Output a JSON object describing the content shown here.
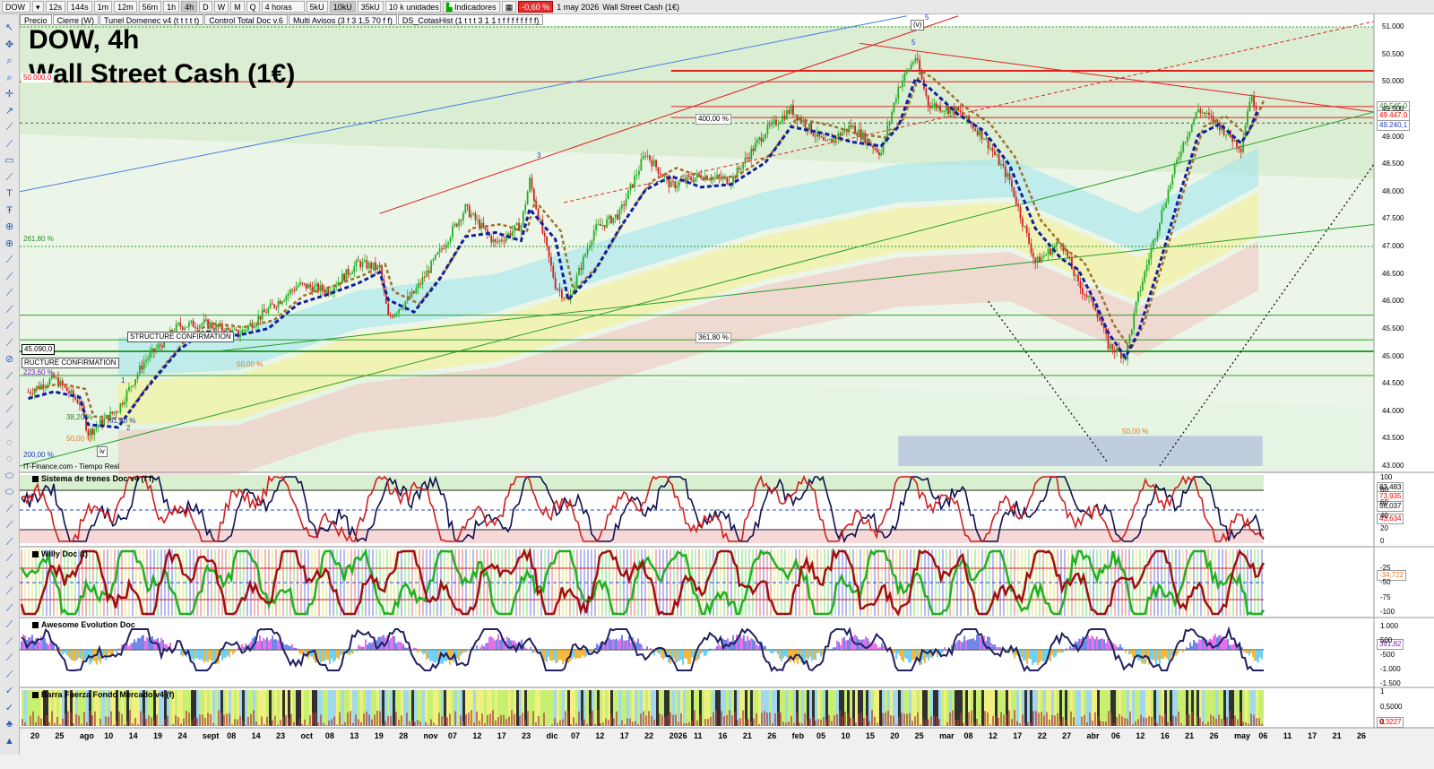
{
  "toolbar": {
    "symbol": "DOW",
    "timeframes": [
      "12s",
      "144s",
      "1m",
      "12m",
      "56m",
      "1h",
      "4h",
      "D",
      "W",
      "M",
      "Q"
    ],
    "active_timeframe": "4h",
    "period": "4 horas",
    "ticks": [
      "5kU",
      "10kU",
      "35kU"
    ],
    "active_tick": "10kU",
    "units": "10 k unidades",
    "indicators_label": "Indicadores",
    "change": "-0,60 %",
    "date": "1 may 2026",
    "instrument": "Wall Street Cash (1€)"
  },
  "indicator_tabs": [
    "Precio",
    "Cierre (W)",
    "Tunel Domenec v4 (t t t t t)",
    "Control Total Doc v.6",
    "Multi Avisos (3 f 3 1,5 70 f f)",
    "DS_CotasHist (1 t t t 3 1 1 t f f f f f f f f)"
  ],
  "title": {
    "line1": "DOW, 4h",
    "line2": "Wall Street Cash (1€)"
  },
  "source_note": "IT-Finance.com - Tiempo Real",
  "panels": {
    "trenes": {
      "title": "Sistema de trenes Doc v4 (f f)"
    },
    "willy": {
      "title": "Willy Doc (t)"
    },
    "awesome": {
      "title": "Awesome Evolution Doc"
    },
    "barra": {
      "title": "Barra Fuerza Fondo Mercado v4 (f)"
    }
  },
  "price_axis_labels": [
    "51.000",
    "50.500",
    "50.000",
    "49.500",
    "49.000",
    "48.500",
    "48.000",
    "47.500",
    "47.000",
    "46.500",
    "46.000",
    "45.500",
    "45.000",
    "44.500",
    "44.000",
    "43.500",
    "43.000"
  ],
  "price_tags": {
    "last": "49.545,0",
    "close": "49.447,0",
    "ref": "49.240,1"
  },
  "left_tags": {
    "level_50000": "50.000,0",
    "level_45090": "45.090,0",
    "pct_223": "223,60 %",
    "pct_200": "200,00 %",
    "pct_261": "261,80 %"
  },
  "annotations": {
    "pct_400": "400,00 %",
    "pct_361": "361,80 %",
    "pct_50a": "50,00 %",
    "pct_50b": "50,00 %",
    "pct_50c": "50,00 %",
    "pct_38": "38,20 %",
    "pct_61": "61,80 %",
    "structure1": "STRUCTURE CONFIRMATION",
    "structure2": "RUCTURE CONFIRMATION",
    "wave3": "3",
    "wave5": "5",
    "wave5b": "5",
    "wave_v": "(v)",
    "wave1": "1",
    "wave2": "2",
    "wave_iv": "iv"
  },
  "trenes_axis": [
    "100",
    "80",
    "60",
    "40",
    "20",
    "0"
  ],
  "trenes_tags": {
    "a": "83,483",
    "b": "73,935",
    "c": "56,037",
    "d": "43,634"
  },
  "willy_axis": [
    "-25",
    "-50",
    "-75",
    "-100"
  ],
  "willy_tag": "-34,722",
  "awesome_axis": [
    "1.000",
    "500",
    "-500",
    "-1.000",
    "-1.500"
  ],
  "awesome_tag": "391,82",
  "barra_axis": [
    "1",
    "0,5000",
    "0"
  ],
  "barra_tag": "0,3227",
  "x_labels": [
    "20",
    "25",
    "ago",
    "10",
    "14",
    "19",
    "24",
    "sept",
    "08",
    "14",
    "23",
    "oct",
    "08",
    "13",
    "19",
    "28",
    "nov",
    "07",
    "12",
    "17",
    "23",
    "dic",
    "07",
    "12",
    "17",
    "22",
    "2026",
    "11",
    "16",
    "21",
    "26",
    "feb",
    "05",
    "10",
    "15",
    "20",
    "25",
    "mar",
    "08",
    "12",
    "17",
    "22",
    "27",
    "abr",
    "06",
    "12",
    "16",
    "21",
    "26",
    "may",
    "06",
    "11",
    "17",
    "21",
    "26"
  ],
  "chart_data": {
    "type": "candlestick",
    "title": "DOW, 4h",
    "subtitle": "Wall Street Cash (1€)",
    "ylim": [
      43000,
      51200
    ],
    "x_range": [
      "2025-07-16",
      "2026-05-28"
    ],
    "series": [
      {
        "name": "Precio",
        "points": [
          [
            "2025-07-18",
            44350
          ],
          [
            "2025-07-24",
            44600
          ],
          [
            "2025-07-30",
            44150
          ],
          [
            "2025-08-01",
            43600
          ],
          [
            "2025-08-08",
            44050
          ],
          [
            "2025-08-14",
            44900
          ],
          [
            "2025-08-22",
            45550
          ],
          [
            "2025-08-28",
            45600
          ],
          [
            "2025-09-05",
            45400
          ],
          [
            "2025-09-12",
            45850
          ],
          [
            "2025-09-19",
            46300
          ],
          [
            "2025-09-26",
            46200
          ],
          [
            "2025-10-03",
            46700
          ],
          [
            "2025-10-08",
            46600
          ],
          [
            "2025-10-10",
            45700
          ],
          [
            "2025-10-16",
            46150
          ],
          [
            "2025-10-22",
            46900
          ],
          [
            "2025-10-28",
            47700
          ],
          [
            "2025-11-04",
            47050
          ],
          [
            "2025-11-10",
            47400
          ],
          [
            "2025-11-12",
            48200
          ],
          [
            "2025-11-18",
            46300
          ],
          [
            "2025-11-21",
            46000
          ],
          [
            "2025-11-27",
            47300
          ],
          [
            "2025-12-03",
            47600
          ],
          [
            "2025-12-09",
            48700
          ],
          [
            "2025-12-15",
            48100
          ],
          [
            "2025-12-22",
            48300
          ],
          [
            "2025-12-29",
            48200
          ],
          [
            "2026-01-06",
            49100
          ],
          [
            "2026-01-12",
            49500
          ],
          [
            "2026-01-20",
            48850
          ],
          [
            "2026-01-26",
            49200
          ],
          [
            "2026-02-02",
            48700
          ],
          [
            "2026-02-06",
            49900
          ],
          [
            "2026-02-10",
            50450
          ],
          [
            "2026-02-13",
            49600
          ],
          [
            "2026-02-20",
            49450
          ],
          [
            "2026-02-26",
            49000
          ],
          [
            "2026-03-04",
            48200
          ],
          [
            "2026-03-10",
            46700
          ],
          [
            "2026-03-16",
            47100
          ],
          [
            "2026-03-20",
            46300
          ],
          [
            "2026-03-24",
            45900
          ],
          [
            "2026-03-27",
            45200
          ],
          [
            "2026-03-31",
            45000
          ],
          [
            "2026-04-03",
            46100
          ],
          [
            "2026-04-08",
            47500
          ],
          [
            "2026-04-13",
            48800
          ],
          [
            "2026-04-17",
            49500
          ],
          [
            "2026-04-22",
            49200
          ],
          [
            "2026-04-27",
            48800
          ],
          [
            "2026-04-29",
            49700
          ],
          [
            "2026-05-01",
            49545
          ]
        ]
      }
    ],
    "horizontal_levels": [
      50000,
      50200,
      49550,
      49350,
      45750,
      45300,
      45090,
      44650
    ],
    "indicators": [
      "Sistema de trenes Doc v4 (f f)",
      "Willy Doc (t)",
      "Awesome Evolution Doc",
      "Barra Fuerza Fondo Mercado v4 (f)"
    ]
  }
}
